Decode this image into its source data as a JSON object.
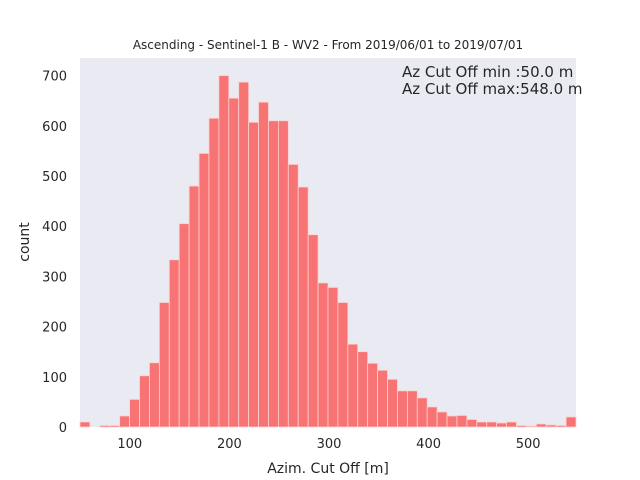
{
  "chart_data": {
    "type": "bar",
    "title": "Ascending - Sentinel-1 B - WV2 - From 2019/06/01 to 2019/07/01",
    "xlabel": "Azim. Cut Off [m]",
    "ylabel": "count",
    "xlim": [
      50,
      548
    ],
    "ylim": [
      0,
      735
    ],
    "xticks": [
      100,
      200,
      300,
      400,
      500
    ],
    "yticks": [
      0,
      100,
      200,
      300,
      400,
      500,
      600,
      700
    ],
    "grid": false,
    "bar_color": "#f87474",
    "bar_edge_color": "#fbd2d2",
    "plot_background": "#eaeaf2",
    "annotations": [
      "Az Cut Off min :50.0 m",
      "Az Cut Off max:548.0 m"
    ],
    "bin_width": 9.96,
    "bin_starts": [
      50.0,
      59.96,
      69.92,
      79.88,
      89.84,
      99.8,
      109.76,
      119.72,
      129.68,
      139.64,
      149.6,
      159.56,
      169.52,
      179.48,
      189.44,
      199.4,
      209.36,
      219.32,
      229.28,
      239.24,
      249.2,
      259.16,
      269.12,
      279.08,
      289.04,
      299.0,
      308.96,
      318.92,
      328.88,
      338.84,
      348.8,
      358.76,
      368.72,
      378.68,
      388.64,
      398.6,
      408.56,
      418.52,
      428.48,
      438.44,
      448.4,
      458.36,
      468.32,
      478.28,
      488.24,
      498.2,
      508.16,
      518.12,
      528.08,
      538.04
    ],
    "values": [
      10,
      0,
      3,
      3,
      22,
      55,
      102,
      128,
      248,
      333,
      405,
      480,
      545,
      615,
      700,
      655,
      687,
      607,
      647,
      610,
      610,
      523,
      478,
      383,
      287,
      278,
      248,
      165,
      150,
      127,
      113,
      95,
      72,
      72,
      58,
      40,
      30,
      22,
      23,
      15,
      10,
      10,
      8,
      10,
      3,
      2,
      6,
      4,
      3,
      20
    ]
  }
}
